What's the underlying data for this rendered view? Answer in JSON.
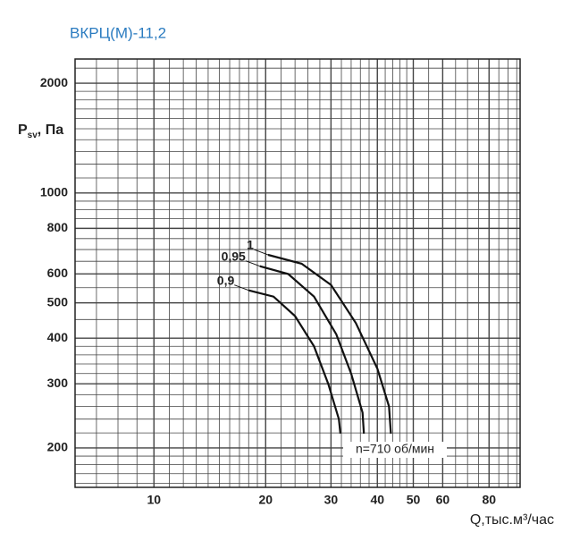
{
  "chart_data": {
    "type": "line",
    "title": "ВКРЦ(М)-11,2",
    "ylabel": {
      "main": "P",
      "sub": "sv",
      "rest": ", Па"
    },
    "xlabel": "Q,тыс.м³/час",
    "annotation": "n=710 об/мин",
    "log_x": true,
    "log_y": true,
    "grid": true,
    "xlim": [
      6.13,
      97
    ],
    "ylim": [
      156,
      2330
    ],
    "xticks": [
      10,
      20,
      30,
      40,
      50,
      60,
      80
    ],
    "yticks": [
      200,
      300,
      400,
      500,
      600,
      800,
      1000,
      2000
    ],
    "xgrid": [
      7,
      8,
      9,
      10,
      11,
      12,
      13,
      14,
      15,
      16,
      17,
      18,
      19,
      20,
      22,
      24,
      26,
      28,
      30,
      32,
      34,
      36,
      38,
      40,
      42,
      44,
      46,
      48,
      50,
      55,
      60,
      65,
      70,
      75,
      80,
      85,
      90,
      95
    ],
    "ygrid": [
      160,
      170,
      180,
      190,
      200,
      220,
      240,
      260,
      280,
      300,
      320,
      340,
      360,
      380,
      400,
      450,
      500,
      550,
      600,
      650,
      700,
      750,
      800,
      850,
      900,
      950,
      1000,
      1100,
      1200,
      1300,
      1400,
      1500,
      1600,
      1700,
      1800,
      1900,
      2000,
      2200
    ],
    "series": [
      {
        "name": "1",
        "color": "#111111",
        "x": [
          20.3,
          25,
          30,
          35,
          40,
          43,
          43.5
        ],
        "values": [
          677,
          640,
          560,
          440,
          330,
          260,
          219
        ]
      },
      {
        "name": "0,95",
        "color": "#111111",
        "x": [
          19.3,
          23,
          27,
          31,
          34,
          36.5,
          36.8
        ],
        "values": [
          630,
          600,
          520,
          410,
          320,
          250,
          219
        ]
      },
      {
        "name": "0,9",
        "color": "#111111",
        "x": [
          18,
          21,
          24,
          27,
          29.5,
          31.5,
          31.8
        ],
        "values": [
          541,
          520,
          460,
          380,
          300,
          240,
          219
        ]
      }
    ]
  }
}
